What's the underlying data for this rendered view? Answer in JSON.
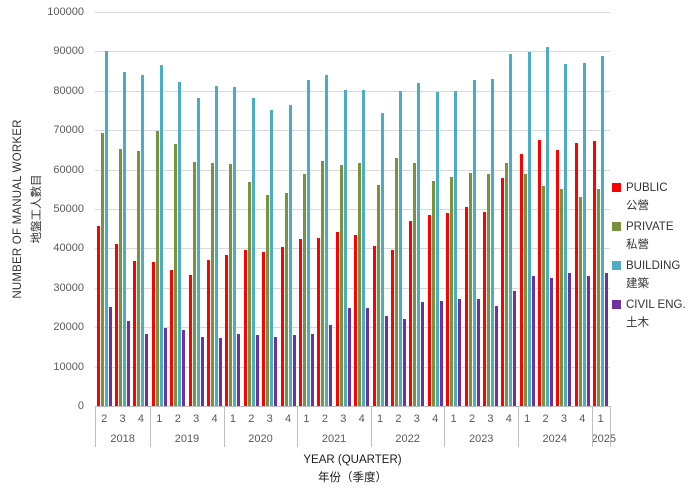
{
  "chart_data": {
    "type": "bar",
    "title": "",
    "xlabel": "YEAR (QUARTER)",
    "xlabel_zh": "年份（季度）",
    "ylabel": "NUMBER OF MANUAL WORKER",
    "ylabel_zh": "地盤工人數目",
    "ylim": [
      0,
      100000
    ],
    "ytick_interval": 10000,
    "yticks": [
      0,
      10000,
      20000,
      30000,
      40000,
      50000,
      60000,
      70000,
      80000,
      90000,
      100000
    ],
    "grid": "horizontal",
    "legend_position": "right",
    "x_structure": [
      {
        "year": "2018",
        "quarters": [
          "2",
          "3",
          "4"
        ]
      },
      {
        "year": "2019",
        "quarters": [
          "1",
          "2",
          "3",
          "4"
        ]
      },
      {
        "year": "2020",
        "quarters": [
          "1",
          "2",
          "3",
          "4"
        ]
      },
      {
        "year": "2021",
        "quarters": [
          "1",
          "2",
          "3",
          "4"
        ]
      },
      {
        "year": "2022",
        "quarters": [
          "1",
          "2",
          "3",
          "4"
        ]
      },
      {
        "year": "2023",
        "quarters": [
          "1",
          "2",
          "3",
          "4"
        ]
      },
      {
        "year": "2024",
        "quarters": [
          "1",
          "2",
          "3",
          "4"
        ]
      },
      {
        "year": "2025",
        "quarters": [
          "1"
        ]
      }
    ],
    "series": [
      {
        "name": "PUBLIC",
        "name_zh": "公營",
        "color": "#ff0000",
        "values": [
          45800,
          41200,
          36700,
          36600,
          34600,
          33200,
          37000,
          38400,
          39700,
          39200,
          40300,
          42300,
          42700,
          44100,
          43400,
          40600,
          39600,
          47000,
          48500,
          48900,
          50600,
          49300,
          57800,
          63900,
          67400,
          65100,
          66800,
          67200
        ]
      },
      {
        "name": "PRIVATE",
        "name_zh": "私營",
        "color": "#77933c",
        "values": [
          69300,
          65200,
          64800,
          69900,
          66400,
          61900,
          61600,
          61300,
          56800,
          53600,
          54100,
          58900,
          62100,
          61100,
          61800,
          56100,
          62900,
          61700,
          57100,
          58200,
          59200,
          58900,
          61600,
          59000,
          55800,
          55100,
          53000,
          55200
        ]
      },
      {
        "name": "BUILDING",
        "name_zh": "建築",
        "color": "#4bacc6",
        "values": [
          90200,
          84800,
          83900,
          86600,
          82200,
          78300,
          81200,
          81000,
          78200,
          75200,
          76500,
          82800,
          84100,
          80200,
          80200,
          74400,
          79900,
          82000,
          79600,
          80000,
          82700,
          83000,
          89300,
          89800,
          91000,
          86700,
          87100,
          88900
        ]
      },
      {
        "name": "CIVIL ENG.",
        "name_zh": "土木",
        "color": "#7030a0",
        "values": [
          25100,
          21600,
          18300,
          19700,
          19300,
          17400,
          17300,
          18400,
          18000,
          17500,
          17900,
          18400,
          20500,
          24800,
          25000,
          22900,
          22100,
          26400,
          26600,
          27200,
          27100,
          25400,
          29300,
          33000,
          32500,
          33800,
          33100,
          33800
        ]
      }
    ],
    "colors": {
      "gridline": "#d9d9d9",
      "axis": "#bfbfbf",
      "tick_text": "#595959",
      "title_text": "#1a1a1a"
    }
  }
}
